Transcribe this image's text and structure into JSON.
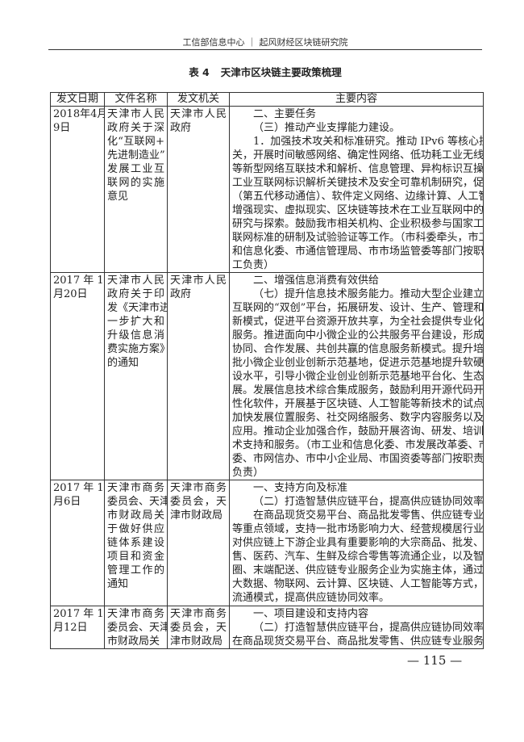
{
  "running_head": "工信部信息中心 ｜ 起风财经区块链研究院",
  "caption": {
    "number": "表 4",
    "title": "天津市区块链主要政策梳理"
  },
  "table": {
    "headers": [
      "发文日期",
      "文件名称",
      "发文机关",
      "主要内容"
    ],
    "rows": [
      {
        "date": [
          "2018年4月",
          "9日"
        ],
        "name": [
          "天津市人民",
          "政府关于深",
          "化“互联网+",
          "先进制造业”",
          "发展工业互",
          "联网的实施",
          "意见"
        ],
        "org": [
          "天津市人民",
          "政府"
        ],
        "content": [
          {
            "indent": true,
            "lines": [
              "二、主要任务"
            ]
          },
          {
            "indent": true,
            "lines": [
              "（三）推动产业支撑能力建设。"
            ]
          },
          {
            "indent": true,
            "lines": [
              "1．加强技术攻关和标准研究。推动 IPv6 等核心技术攻",
              "关，开展时间敏感网络、确定性网络、低功耗工业无线网络",
              "等新型网络互联技术和解析、信息管理、异构标识互操作等",
              "工业互联网标识解析关键技术及安全可靠机制研究，促进 5G",
              "（第五代移动通信）、软件定义网络、边缘计算、人工智能、",
              "增强现实、虚拟现实、区块链等技术在工业互联网中的应用",
              "研究与探索。鼓励我市相关机构、企业积极参与国家工业互",
              "联网标准的研制及试验验证等工作。（市科委牵头，市工业",
              "和信息化委、市通信管理局、市市场监管委等部门按职责分",
              "工负责）"
            ]
          }
        ]
      },
      {
        "date": [
          "2017 年 11",
          "月20日"
        ],
        "name": [
          "天津市人民",
          "政府关于印",
          "发《天津市进",
          "一步扩大和",
          "升级信息消",
          "费实施方案》",
          "的通知"
        ],
        "org": [
          "天津市人民",
          "政府"
        ],
        "content": [
          {
            "indent": true,
            "lines": [
              "二、增强信息消费有效供给"
            ]
          },
          {
            "indent": true,
            "lines": [
              "（七）提升信息技术服务能力。推动大型企业建立基于",
              "互联网的“双创”平台，拓展研发、设计、生产、管理和服务",
              "新模式，促进平台资源开放共享，为全社会提供专业化信息",
              "服务。推进面向中小微企业的公共服务平台建设，形成业务",
              "协同、合作发展、共创共赢的信息服务新模式。提升培育一",
              "批小微企业创业创新示范基地，促进示范基地提升软硬件建",
              "设水平，引导小微企业创业创新示范基地平台化、生态化发",
              "展。发展信息技术综合集成服务，鼓励利用开源代码开发个",
              "性化软件，开展基于区块链、人工智能等新技术的试点应用，",
              "加快发展位置服务、社交网络服务、数字内容服务以及智能",
              "应用。推动企业加强合作，鼓励开展咨询、研发、培训等技",
              "术支持和服务。（市工业和信息化委、市发展改革委、市科",
              "委、市网信办、市中小企业局、市国资委等部门按职责分工",
              "负责）"
            ]
          }
        ]
      },
      {
        "date": [
          "2017 年 11",
          "月6日"
        ],
        "name": [
          "天津市商务",
          "委员会、天津",
          "市财政局关",
          "于做好供应",
          "链体系建设",
          "项目和资金",
          "管理工作的",
          "通知"
        ],
        "org": [
          "天津市商务",
          "委员会，天",
          "津市财政局"
        ],
        "content": [
          {
            "indent": true,
            "lines": [
              "一、支持方向及标准"
            ]
          },
          {
            "indent": true,
            "lines": [
              "（二）打造智慧供应链平台，提高供应链协同效率"
            ]
          },
          {
            "indent": true,
            "lines": [
              "在商品现货交易平台、商品批发零售、供应链专业服务",
              "等重点领域，支持一批市场影响力大、经营规模居行业前列、",
              "对供应链上下游企业具有重要影响的大宗商品、批发、新零",
              "售、医药、汽车、生鲜及综合零售等流通企业，以及智慧商",
              "圈、末端配送、供应链专业服务企业为实施主体，通过利用",
              "大数据、物联网、云计算、区块链、人工智能等方式，创新",
              "流通模式，提高供应链协同效率。"
            ]
          }
        ]
      },
      {
        "date": [
          "2017 年 10",
          "月12日"
        ],
        "name": [
          "天津市商务",
          "委员会、天津",
          "市财政局关"
        ],
        "org": [
          "天津市商务",
          "委员会，天",
          "津市财政局"
        ],
        "content": [
          {
            "indent": true,
            "lines": [
              "一、项目建设和支持内容"
            ]
          },
          {
            "indent": true,
            "lines": [
              "（二）打造智慧供应链平台，提高供应链协同效率"
            ]
          },
          {
            "indent": false,
            "lines": [
              "在商品现货交易平台、商品批发零售、供应链专业服务等重"
            ]
          }
        ]
      }
    ]
  },
  "page_number": "— 115 —",
  "watermarks": [
    "工信部信息中心",
    "起风财经"
  ]
}
